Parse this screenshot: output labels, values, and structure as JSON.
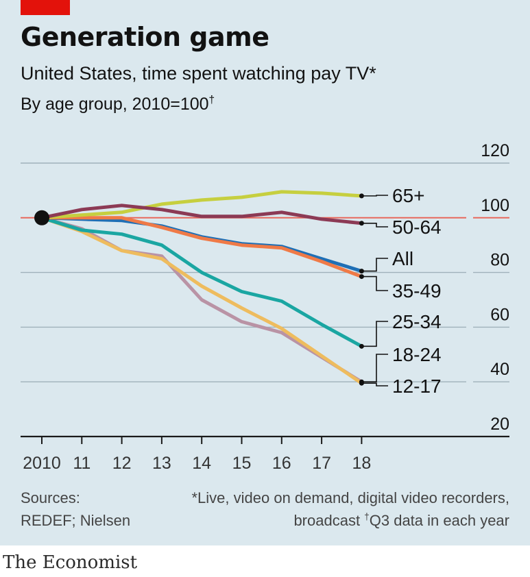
{
  "header": {
    "title": "Generation game",
    "subtitle": "United States, time spent watching pay TV*",
    "index_note": "By age group, 2010=100",
    "dagger": "†"
  },
  "footer": {
    "sources_line1": "Sources:",
    "sources_line2": "REDEF; Nielsen",
    "note_line1": "*Live, video on demand, digital video recorders,",
    "note_line2_prefix": "broadcast ",
    "note_dagger": "†",
    "note_line2_rest": "Q3 data in each year",
    "brand": "The Economist"
  },
  "colors": {
    "background": "#dbe8ee",
    "accent_red": "#e3120b",
    "grid": "#9fb1ba",
    "baseline_100": "#e8685c"
  },
  "chart_data": {
    "type": "line",
    "title": "Generation game",
    "subtitle": "United States, time spent watching pay TV*",
    "ylabel": "By age group, 2010=100",
    "x": [
      2010,
      2011,
      2012,
      2013,
      2014,
      2015,
      2016,
      2017,
      2018
    ],
    "x_tick_labels": [
      "2010",
      "11",
      "12",
      "13",
      "14",
      "15",
      "16",
      "17",
      "18"
    ],
    "ylim": [
      20,
      120
    ],
    "y_ticks": [
      20,
      40,
      60,
      80,
      100,
      120
    ],
    "series": [
      {
        "name": "65+",
        "color": "#c6cf3f",
        "values": [
          100,
          101,
          102,
          105,
          106.5,
          107.5,
          109.5,
          109,
          108
        ]
      },
      {
        "name": "50-64",
        "color": "#8c3a55",
        "values": [
          100,
          103,
          104.5,
          103,
          100.5,
          100.5,
          102,
          99.5,
          98
        ]
      },
      {
        "name": "All",
        "color": "#1f6fb5",
        "values": [
          100,
          99.5,
          99,
          97,
          93,
          90.5,
          89.5,
          85,
          80.5
        ]
      },
      {
        "name": "35-49",
        "color": "#ef7a47",
        "values": [
          100,
          100,
          100,
          96.5,
          92.5,
          90,
          89,
          84,
          78.5
        ]
      },
      {
        "name": "25-34",
        "color": "#1aa6a2",
        "values": [
          100,
          95.5,
          94,
          90,
          80,
          73,
          69.5,
          61,
          53
        ]
      },
      {
        "name": "18-24",
        "color": "#b993a5",
        "values": [
          100,
          96,
          88,
          86,
          70,
          62,
          58,
          49,
          40
        ]
      },
      {
        "name": "12-17",
        "color": "#eebc5e",
        "values": [
          100,
          95,
          88,
          85,
          75,
          67,
          59.5,
          49.5,
          39.5
        ]
      }
    ],
    "labels": [
      {
        "series": "65+",
        "text": "65+"
      },
      {
        "series": "50-64",
        "text": "50-64"
      },
      {
        "series": "All",
        "text": "All"
      },
      {
        "series": "35-49",
        "text": "35-49"
      },
      {
        "series": "25-34",
        "text": "25-34"
      },
      {
        "series": "18-24",
        "text": "18-24"
      },
      {
        "series": "12-17",
        "text": "12-17"
      }
    ],
    "start_marker": {
      "x": 2010,
      "y": 100
    }
  }
}
